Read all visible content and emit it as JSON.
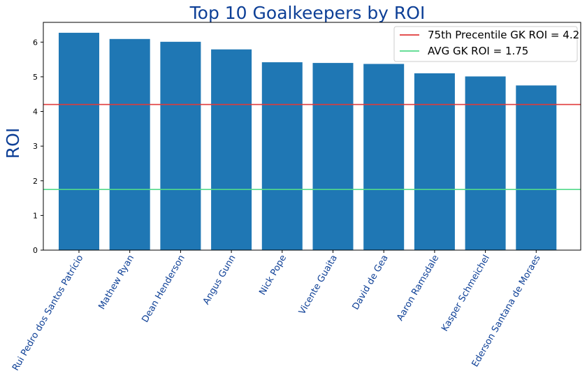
{
  "chart_data": {
    "type": "bar",
    "title": "Top 10 Goalkeepers by ROI",
    "xlabel": "",
    "ylabel": "ROI",
    "categories": [
      "Rui Pedro dos Santos Patrício",
      "Mathew Ryan",
      "Dean Henderson",
      "Angus Gunn",
      "Nick Pope",
      "Vicente Guaita",
      "David de Gea",
      "Aaron Ramsdale",
      "Kasper Schmeichel",
      "Ederson Santana de Moraes"
    ],
    "values": [
      6.27,
      6.09,
      6.01,
      5.79,
      5.42,
      5.4,
      5.37,
      5.1,
      5.01,
      4.75
    ],
    "ylim": [
      0,
      6.57
    ],
    "yticks": [
      0,
      1,
      2,
      3,
      4,
      5,
      6
    ],
    "grid": false,
    "bar_color": "#1f77b4",
    "label_color": "#0d3f96",
    "reference_lines": [
      {
        "label": "75th Precentile GK ROI = 4.2",
        "value": 4.2,
        "color": "#e03a3a"
      },
      {
        "label": "AVG GK ROI = 1.75",
        "value": 1.75,
        "color": "#52d98a"
      }
    ],
    "legend_position": "top-right"
  }
}
